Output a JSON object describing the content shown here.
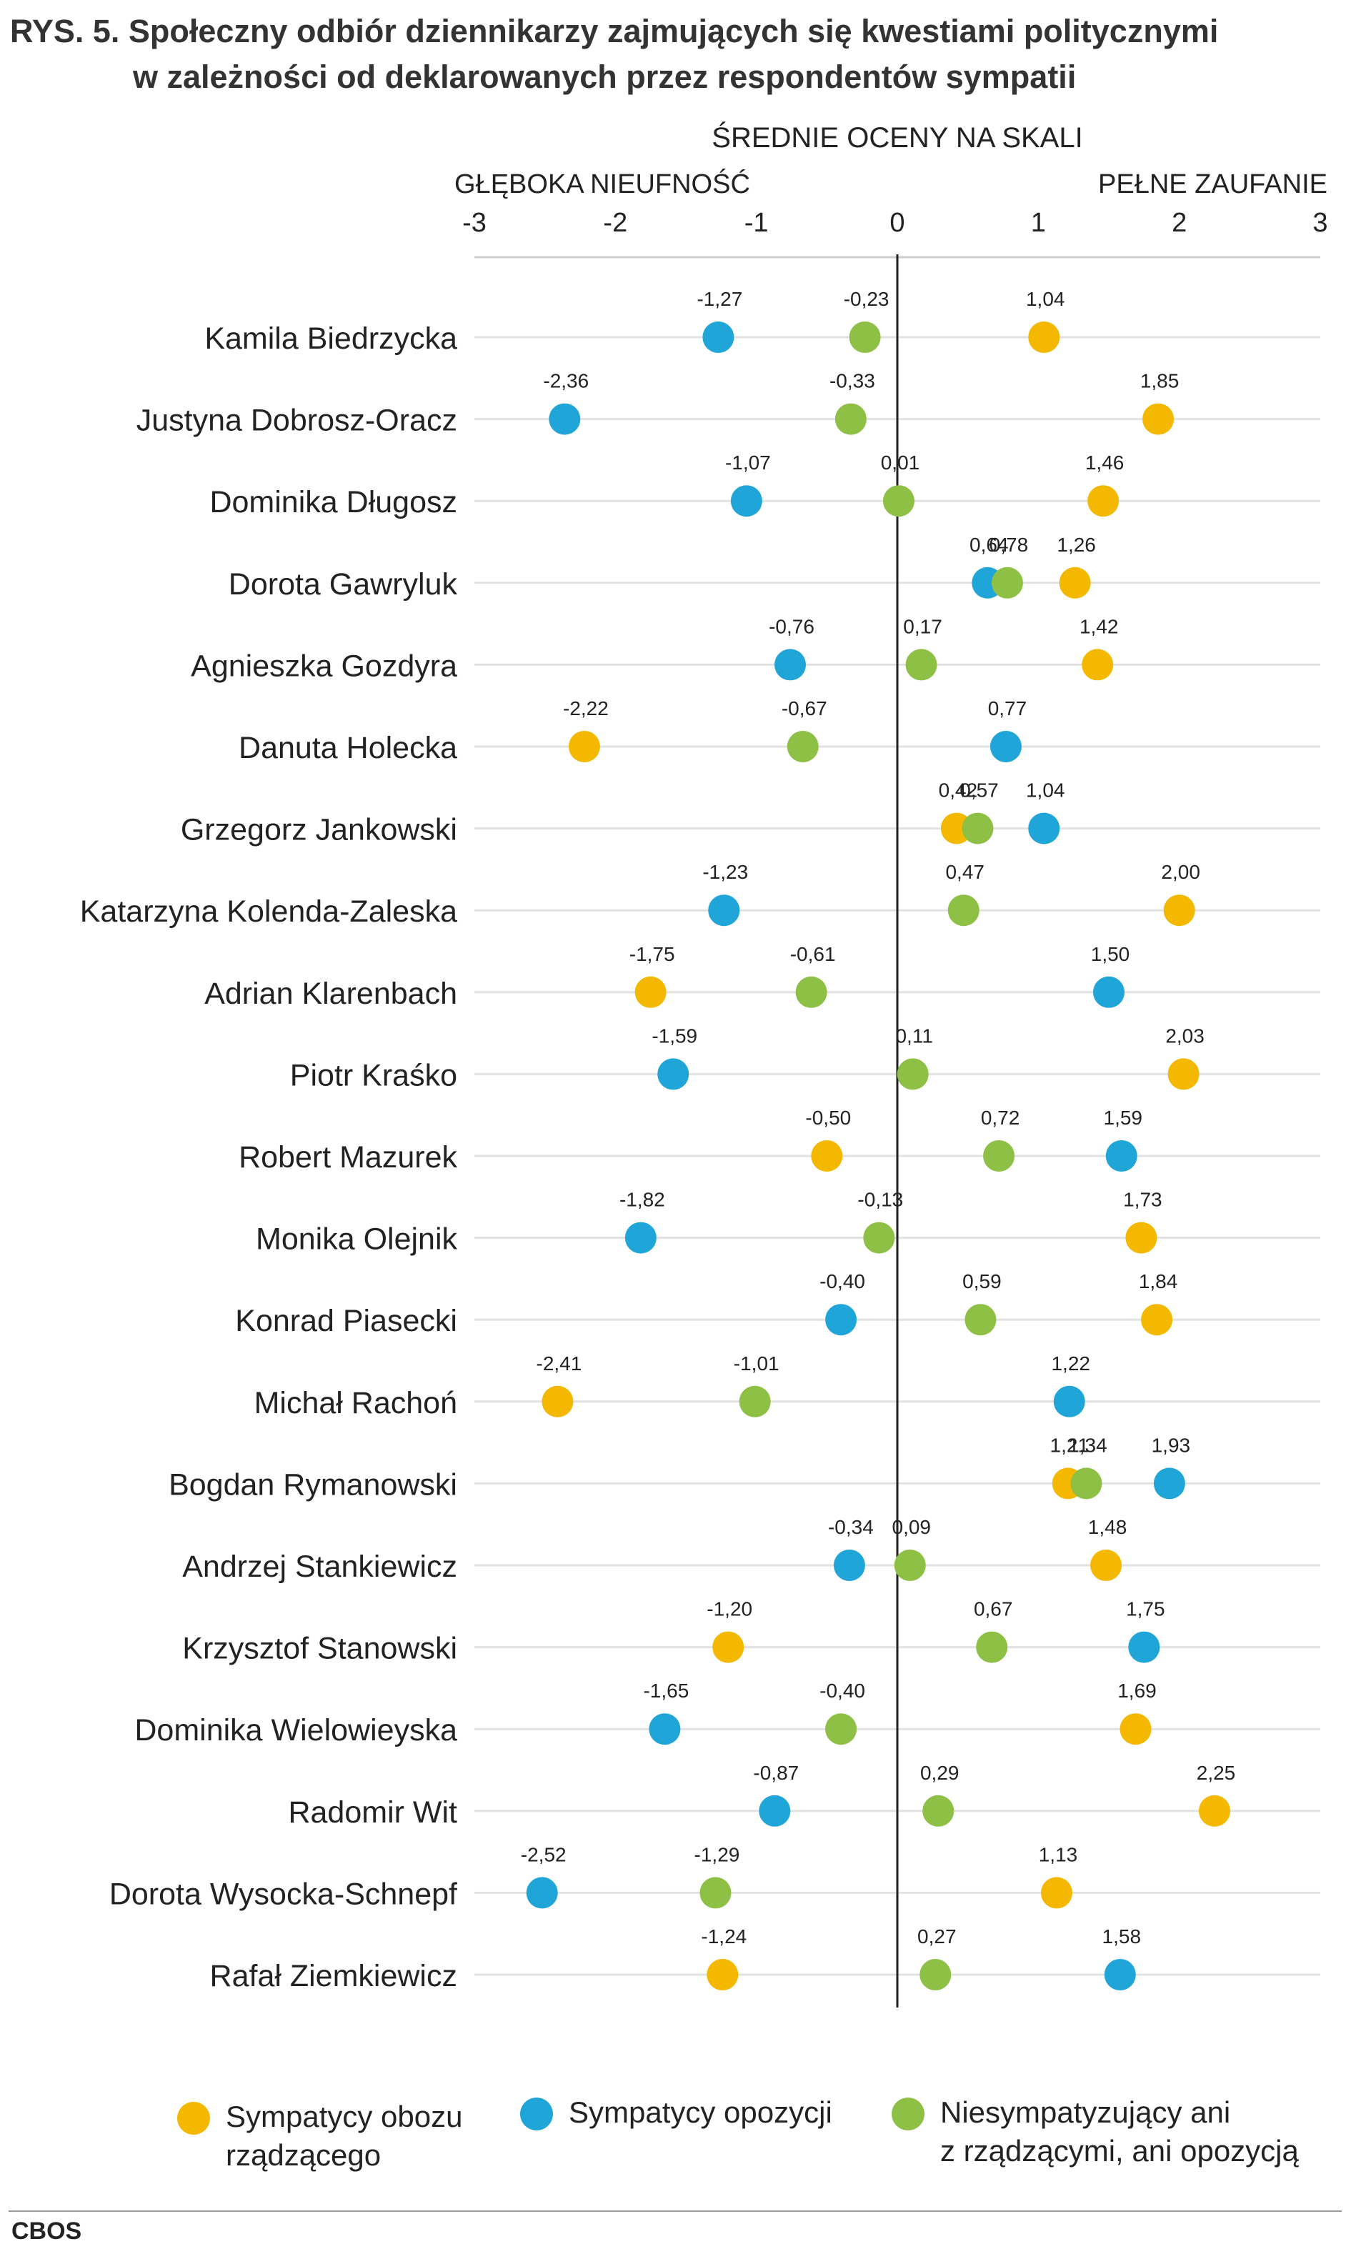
{
  "title_line1": "RYS. 5. Społeczny odbiór dziennikarzy zajmujących się kwestiami politycznymi",
  "title_line2": "w zależności od deklarowanych przez respondentów sympatii",
  "chart_data": {
    "type": "scatter",
    "axis_title": "ŚREDNIE OCENY NA SKALI",
    "left_label": "GŁĘBOKA NIEUFNOŚĆ",
    "right_label": "PEŁNE ZAUFANIE",
    "xlim": [
      -3,
      3
    ],
    "ticks": [
      -3,
      -2,
      -1,
      0,
      1,
      2,
      3
    ],
    "grid": true,
    "legend_position": "bottom",
    "categories": [
      "Kamila Biedrzycka",
      "Justyna Dobrosz-Oracz",
      "Dominika Długosz",
      "Dorota Gawryluk",
      "Agnieszka Gozdyra",
      "Danuta Holecka",
      "Grzegorz Jankowski",
      "Katarzyna Kolenda-Zaleska",
      "Adrian Klarenbach",
      "Piotr Kraśko",
      "Robert Mazurek",
      "Monika Olejnik",
      "Konrad Piasecki",
      "Michał Rachoń",
      "Bogdan Rymanowski",
      "Andrzej Stankiewicz",
      "Krzysztof Stanowski",
      "Dominika Wielowieyska",
      "Radomir Wit",
      "Dorota Wysocka-Schnepf",
      "Rafał Ziemkiewicz"
    ],
    "series": [
      {
        "name": "Sympatycy obozu\nrządzącego",
        "color": "#F5B800",
        "values": [
          1.04,
          1.85,
          1.46,
          1.26,
          1.42,
          -2.22,
          0.42,
          2.0,
          -1.75,
          2.03,
          -0.5,
          1.73,
          1.84,
          -2.41,
          1.21,
          1.48,
          -1.2,
          1.69,
          2.25,
          1.13,
          -1.24
        ],
        "labels": [
          "1,04",
          "1,85",
          "1,46",
          "1,26",
          "1,42",
          "-2,22",
          "0,42",
          "2,00",
          "-1,75",
          "2,03",
          "-0,50",
          "1,73",
          "1,84",
          "-2,41",
          "1,21",
          "1,48",
          "-1,20",
          "1,69",
          "2,25",
          "1,13",
          "-1,24"
        ]
      },
      {
        "name": "Sympatycy opozycji",
        "color": "#1FA5D8",
        "values": [
          -1.27,
          -2.36,
          -1.07,
          0.64,
          -0.76,
          0.77,
          1.04,
          -1.23,
          1.5,
          -1.59,
          1.59,
          -1.82,
          -0.4,
          1.22,
          1.93,
          -0.34,
          1.75,
          -1.65,
          -0.87,
          -2.52,
          1.58
        ],
        "labels": [
          "-1,27",
          "-2,36",
          "-1,07",
          "0,64",
          "-0,76",
          "0,77",
          "1,04",
          "-1,23",
          "1,50",
          "-1,59",
          "1,59",
          "-1,82",
          "-0,40",
          "1,22",
          "1,93",
          "-0,34",
          "1,75",
          "-1,65",
          "-0,87",
          "-2,52",
          "1,58"
        ]
      },
      {
        "name": "Niesympatyzujący ani\nz rządzącymi, ani opozycją",
        "color": "#8DC045",
        "values": [
          -0.23,
          -0.33,
          0.01,
          0.78,
          0.17,
          -0.67,
          0.57,
          0.47,
          -0.61,
          0.11,
          0.72,
          -0.13,
          0.59,
          -1.01,
          1.34,
          0.09,
          0.67,
          -0.4,
          0.29,
          -1.29,
          0.27
        ],
        "labels": [
          "-0,23",
          "-0,33",
          "0,01",
          "0,78",
          "0,17",
          "-0,67",
          "0,57",
          "0,47",
          "-0,61",
          "0,11",
          "0,72",
          "-0,13",
          "0,59",
          "-1,01",
          "1,34",
          "0,09",
          "0,67",
          "-0,40",
          "0,29",
          "-1,29",
          "0,27"
        ]
      }
    ]
  },
  "footer": "CBOS"
}
